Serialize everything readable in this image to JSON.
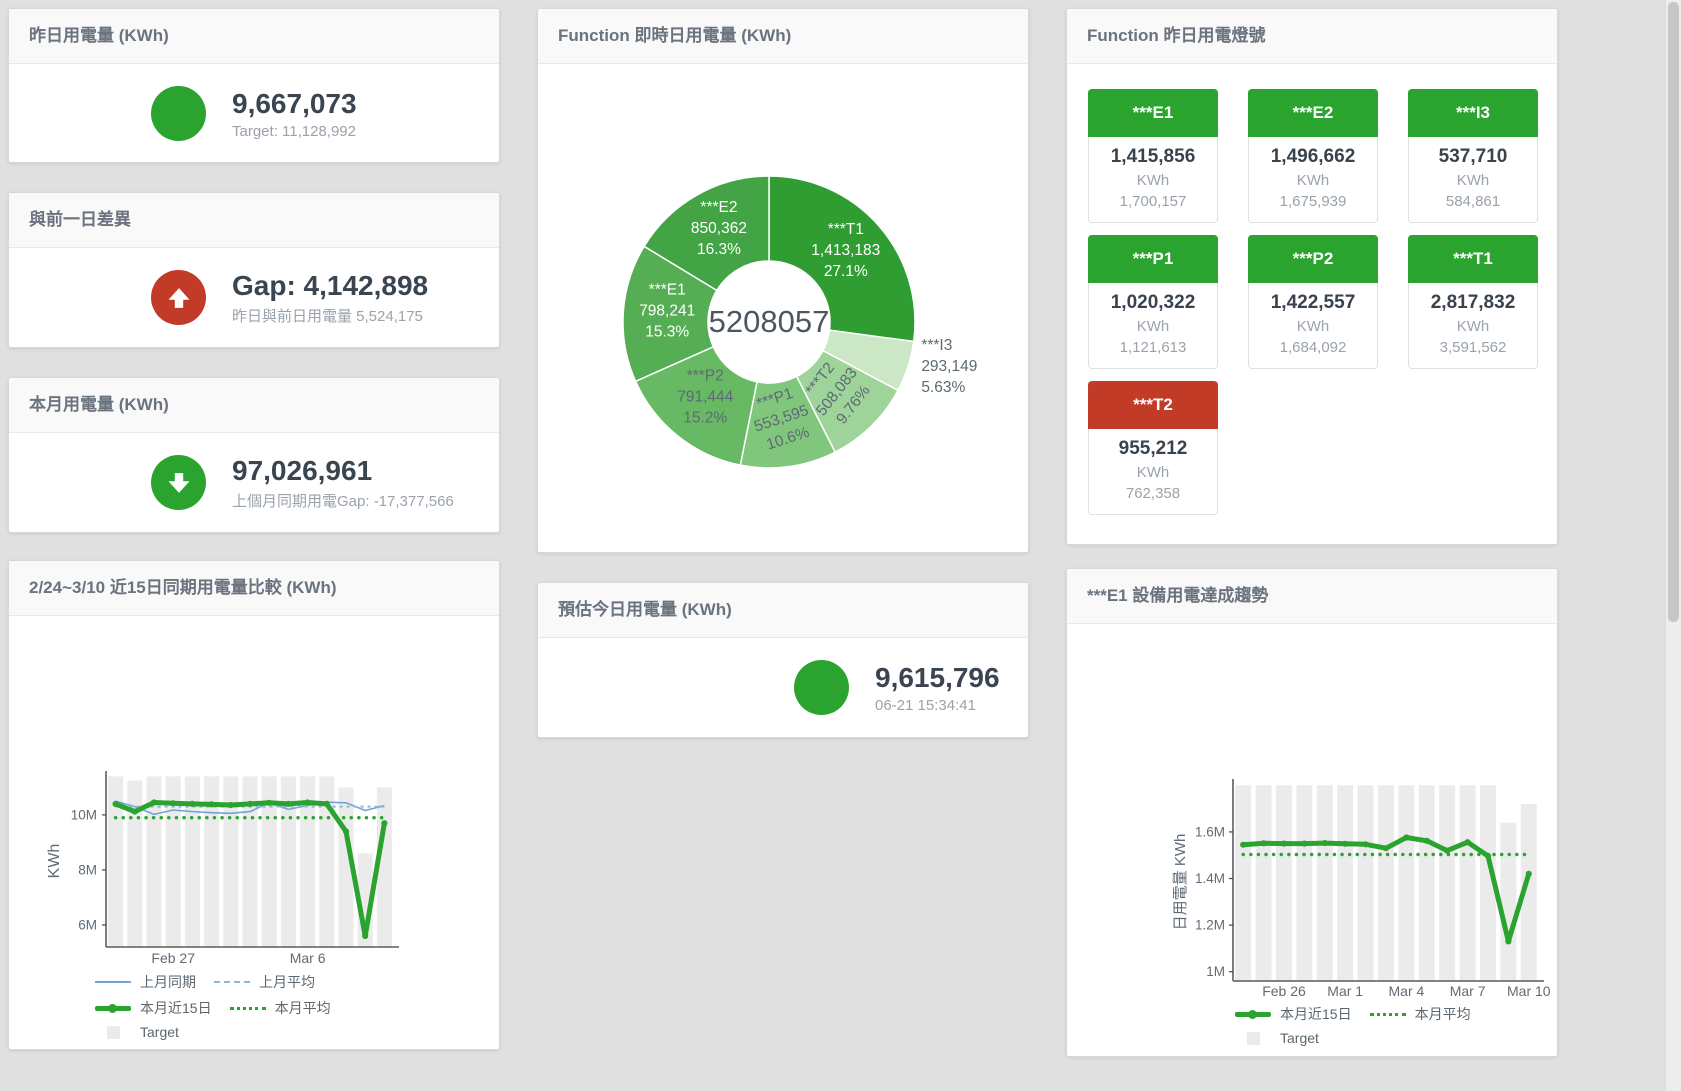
{
  "colors": {
    "green": "#2ba32f",
    "red": "#c13b27",
    "blue": "#72a5d3",
    "blue_light": "#8cb8df",
    "target_gray": "#ebebeb",
    "text_dark": "#3a4551",
    "text_muted": "#9aa2ab",
    "axis_text": "#5f6b76"
  },
  "stat_cards": {
    "yesterday": {
      "title": "昨日用電量 (KWh)",
      "value": "9,667,073",
      "subtitle": "Target: 11,128,992",
      "indicator": "circle",
      "status": "green"
    },
    "prev_day_gap": {
      "title": "與前一日差異",
      "value": "Gap: 4,142,898",
      "subtitle": "昨日與前日用電量 5,524,175",
      "indicator": "arrow-up",
      "status": "red"
    },
    "month": {
      "title": "本月用電量 (KWh)",
      "value": "97,026,961",
      "subtitle": "上個月同期用電Gap: -17,377,566",
      "indicator": "arrow-down",
      "status": "green"
    },
    "today_estimate": {
      "title": "預估今日用電量 (KWh)",
      "value": "9,615,796",
      "subtitle": "06-21 15:34:41",
      "indicator": "circle",
      "status": "green"
    }
  },
  "lights": {
    "title": "Function 昨日用電燈號",
    "unit": "KWh",
    "tiles": [
      {
        "name": "***E1",
        "value": "1,415,856",
        "target": "1,700,157",
        "status": "green"
      },
      {
        "name": "***E2",
        "value": "1,496,662",
        "target": "1,675,939",
        "status": "green"
      },
      {
        "name": "***I3",
        "value": "537,710",
        "target": "584,861",
        "status": "green"
      },
      {
        "name": "***P1",
        "value": "1,020,322",
        "target": "1,121,613",
        "status": "green"
      },
      {
        "name": "***P2",
        "value": "1,422,557",
        "target": "1,684,092",
        "status": "green"
      },
      {
        "name": "***T1",
        "value": "2,817,832",
        "target": "3,591,562",
        "status": "green"
      },
      {
        "name": "***T2",
        "value": "955,212",
        "target": "762,358",
        "status": "red"
      }
    ]
  },
  "chart_data": [
    {
      "id": "realtime-donut",
      "type": "pie",
      "title": "Function 即時日用電量 (KWh)",
      "center_total": "5208057",
      "segments": [
        {
          "label": "***T1",
          "value": 1413183,
          "pct": "27.1%",
          "color": "#2f9d31",
          "text": "#ffffff"
        },
        {
          "label": "***I3",
          "value": 293149,
          "pct": "5.63%",
          "color": "#cbe7c6",
          "text": "#5d6a73",
          "outside": true
        },
        {
          "label": "***T2",
          "value": 508083,
          "pct": "9.76%",
          "color": "#9ed499",
          "text": "#5d6a73",
          "rotate": -52
        },
        {
          "label": "***P1",
          "value": 553595,
          "pct": "10.6%",
          "color": "#80c67c",
          "text": "#5d6a73",
          "rotate": -18
        },
        {
          "label": "***P2",
          "value": 791444,
          "pct": "15.2%",
          "color": "#67b963",
          "text": "#5d6a73"
        },
        {
          "label": "***E1",
          "value": 798241,
          "pct": "15.3%",
          "color": "#55ae53",
          "text": "#ffffff"
        },
        {
          "label": "***E2",
          "value": 850362,
          "pct": "16.3%",
          "color": "#42a444",
          "text": "#ffffff"
        }
      ]
    },
    {
      "id": "compare-15d",
      "type": "line+bar",
      "title": "2/24~3/10 近15日同期用電量比較 (KWh)",
      "ylabel": "KWh",
      "ylim": [
        5200000,
        11450000
      ],
      "yticks": [
        {
          "v": 6000000,
          "label": "6M"
        },
        {
          "v": 8000000,
          "label": "8M"
        },
        {
          "v": 10000000,
          "label": "10M"
        }
      ],
      "x_count": 15,
      "xticks": [
        {
          "i": 3,
          "label": "Feb 27"
        },
        {
          "i": 10,
          "label": "Mar 6"
        }
      ],
      "bar_color": "#ebebeb",
      "target_bars": [
        11400000,
        11250000,
        11400000,
        11400000,
        11400000,
        11400000,
        11400000,
        11400000,
        11400000,
        11400000,
        11400000,
        11400000,
        11000000,
        8600000,
        11000000
      ],
      "series": [
        {
          "name": "上月同期",
          "color": "#72a5d3",
          "width": 1.6,
          "values": [
            10500000,
            10300000,
            10020000,
            10180000,
            10120000,
            10080000,
            10060000,
            10120000,
            10440000,
            10200000,
            10340000,
            10460000,
            10440000,
            10160000,
            10340000
          ]
        },
        {
          "name": "上月平均",
          "color": "#8cb8df",
          "width": 2,
          "dash": "3 4",
          "values": [
            10300000,
            10300000,
            10300000,
            10300000,
            10300000,
            10300000,
            10300000,
            10300000,
            10300000,
            10300000,
            10300000,
            10300000,
            10300000,
            10300000,
            10300000
          ]
        },
        {
          "name": "本月近15日",
          "color": "#2ba32f",
          "width": 5,
          "marker": 3.1,
          "values": [
            10400000,
            10120000,
            10450000,
            10420000,
            10400000,
            10380000,
            10360000,
            10400000,
            10440000,
            10400000,
            10450000,
            10400000,
            9400000,
            5600000,
            9700000
          ]
        },
        {
          "name": "本月平均",
          "color": "#2ba32f",
          "width": 3.4,
          "dash": "0.1 7.5",
          "cap": "round",
          "values": [
            9900000,
            9900000,
            9900000,
            9900000,
            9900000,
            9900000,
            9900000,
            9900000,
            9900000,
            9900000,
            9900000,
            9900000,
            9900000,
            9900000,
            9900000
          ]
        }
      ],
      "legend": [
        [
          {
            "label": "上月同期",
            "swatch": "line",
            "color": "#72a5d3"
          },
          {
            "label": "上月平均",
            "swatch": "dash",
            "color": "#8cb8df"
          }
        ],
        [
          {
            "label": "本月近15日",
            "swatch": "thick",
            "color": "#2ba32f"
          },
          {
            "label": "本月平均",
            "swatch": "dots",
            "color": "#2ba32f"
          }
        ],
        [
          {
            "label": "Target",
            "swatch": "square",
            "color": "#ebebeb"
          }
        ]
      ]
    },
    {
      "id": "e1-trend",
      "type": "line+bar",
      "title": "***E1 設備用電達成趨勢",
      "ylabel": "日用電量 KWh",
      "ylim": [
        960000,
        1810000
      ],
      "yticks": [
        {
          "v": 1000000,
          "label": "1M"
        },
        {
          "v": 1200000,
          "label": "1.2M"
        },
        {
          "v": 1400000,
          "label": "1.4M"
        },
        {
          "v": 1600000,
          "label": "1.6M"
        }
      ],
      "x_count": 15,
      "xticks": [
        {
          "i": 2,
          "label": "Feb 26"
        },
        {
          "i": 5,
          "label": "Mar 1"
        },
        {
          "i": 8,
          "label": "Mar 4"
        },
        {
          "i": 11,
          "label": "Mar 7"
        },
        {
          "i": 14,
          "label": "Mar 10"
        }
      ],
      "bar_color": "#ebebeb",
      "target_bars": [
        1800000,
        1800000,
        1800000,
        1800000,
        1800000,
        1800000,
        1800000,
        1800000,
        1800000,
        1800000,
        1800000,
        1800000,
        1800000,
        1640000,
        1720000
      ],
      "series": [
        {
          "name": "本月近15日",
          "color": "#2ba32f",
          "width": 5,
          "marker": 3.1,
          "values": [
            1545000,
            1551000,
            1550000,
            1550000,
            1552000,
            1549000,
            1547000,
            1530000,
            1576000,
            1562000,
            1520000,
            1556000,
            1497000,
            1130000,
            1420000
          ]
        },
        {
          "name": "本月平均",
          "color": "#2ba32f",
          "width": 3.4,
          "dash": "0.1 7.5",
          "cap": "round",
          "values": [
            1503000,
            1503000,
            1503000,
            1503000,
            1503000,
            1503000,
            1503000,
            1503000,
            1503000,
            1503000,
            1503000,
            1503000,
            1503000,
            1503000,
            1503000
          ]
        }
      ],
      "legend": [
        [
          {
            "label": "本月近15日",
            "swatch": "thick",
            "color": "#2ba32f"
          },
          {
            "label": "本月平均",
            "swatch": "dots",
            "color": "#2ba32f"
          }
        ],
        [
          {
            "label": "Target",
            "swatch": "square",
            "color": "#ebebeb"
          }
        ]
      ]
    }
  ]
}
